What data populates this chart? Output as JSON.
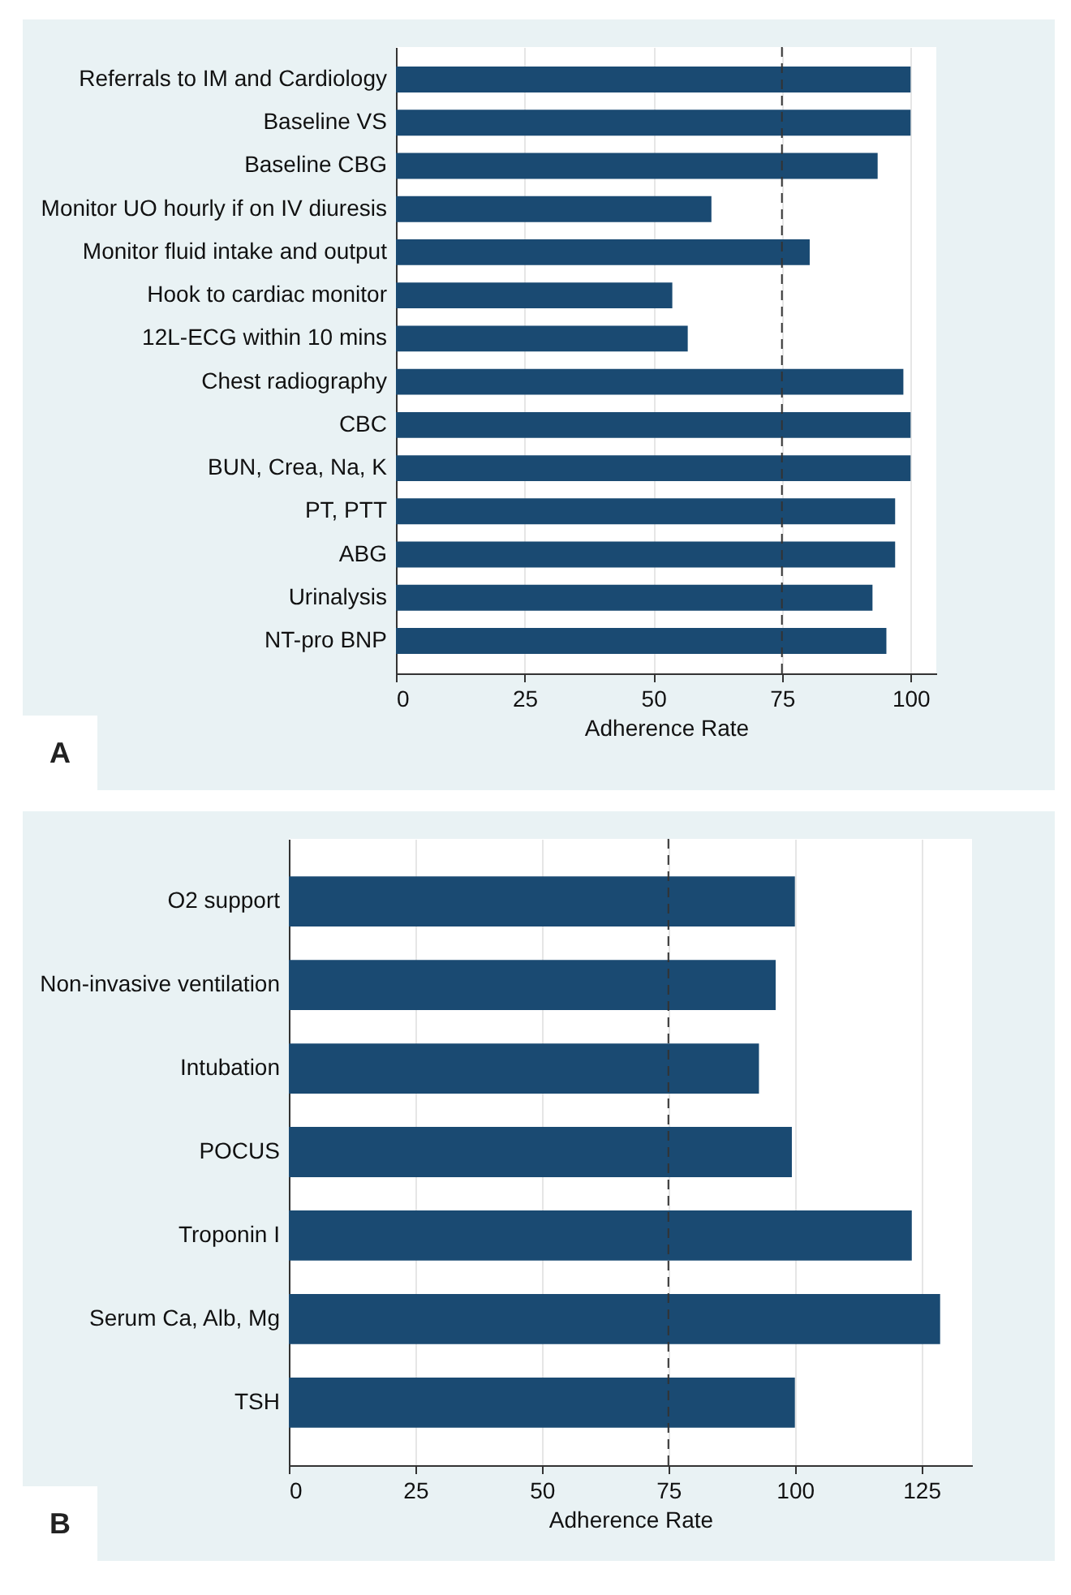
{
  "chart_data": [
    {
      "type": "bar",
      "orientation": "horizontal",
      "xlabel": "Adherence Rate",
      "categories": [
        "Referrals to IM and Cardiology",
        "Baseline VS",
        "Baseline CBG",
        "Monitor UO hourly if on IV diuresis",
        "Monitor fluid intake and output",
        "Hook to cardiac monitor",
        "12L-ECG within 10 mins",
        "Chest radiography",
        "CBC",
        "BUN, Crea, Na, K",
        "PT, PTT",
        "ABG",
        "Urinalysis",
        "NT-pro BNP"
      ],
      "values": [
        100,
        100,
        93.6,
        61.3,
        80.4,
        53.7,
        56.7,
        98.6,
        100,
        100,
        97,
        97,
        92.6,
        95.3
      ],
      "color": "#1a4a72",
      "xlim": [
        0,
        105
      ],
      "xticks": [
        0,
        25,
        50,
        75,
        100
      ],
      "grid": "x",
      "ref_lines": [
        {
          "axis": "x",
          "value": 75,
          "color": "#333333",
          "line_style": "dashed"
        }
      ],
      "annotations": [
        "A"
      ]
    },
    {
      "type": "bar",
      "orientation": "horizontal",
      "xlabel": "Adherence Rate",
      "categories": [
        "O2 support",
        "Non-invasive ventilation",
        "Intubation",
        "POCUS",
        "Troponin I",
        "Serum Ca, Alb, Mg",
        "TSH"
      ],
      "values": [
        100,
        96.2,
        92.9,
        99.4,
        123.1,
        128.7,
        100
      ],
      "color": "#1a4a72",
      "xlim": [
        0,
        135
      ],
      "xticks": [
        0,
        25,
        50,
        75,
        100,
        125
      ],
      "grid": "x",
      "ref_lines": [
        {
          "axis": "x",
          "value": 75,
          "color": "#333333",
          "line_style": "dashed"
        }
      ],
      "annotations": [
        "B"
      ]
    }
  ]
}
